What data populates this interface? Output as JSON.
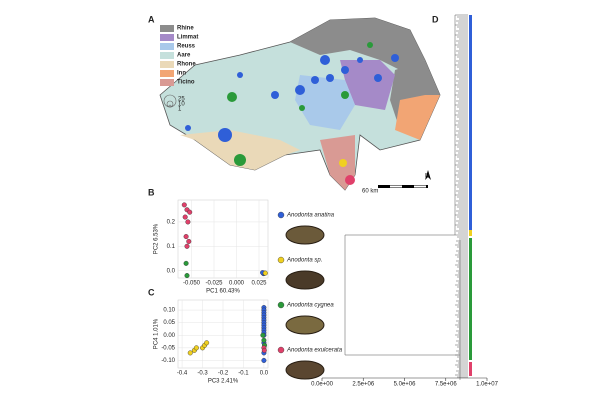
{
  "panels": {
    "a": "A",
    "b": "B",
    "c": "C",
    "d": "D"
  },
  "map": {
    "legend": [
      {
        "name": "Rhine",
        "color": "#8c8c8c"
      },
      {
        "name": "Limmat",
        "color": "#a58ac8"
      },
      {
        "name": "Reuss",
        "color": "#a9c9ea"
      },
      {
        "name": "Aare",
        "color": "#c5e0dc"
      },
      {
        "name": "Rhone",
        "color": "#ead9b8"
      },
      {
        "name": "Inn",
        "color": "#f2a574"
      },
      {
        "name": "Ticino",
        "color": "#d99a94"
      }
    ],
    "size_legend": [
      "25",
      "10",
      "1"
    ],
    "scale": "60 km",
    "north": "N"
  },
  "chart_data": [
    {
      "type": "scatter",
      "xlabel": "PC1 60.43%",
      "ylabel": "PC2 6.53%",
      "xlim": [
        -0.065,
        0.035
      ],
      "ylim": [
        -0.03,
        0.29
      ],
      "xticks": [
        {
          "value": -0.05,
          "label": "-0.050"
        },
        -0.025,
        {
          "value": 0,
          "label": "0.000"
        },
        0.025
      ],
      "yticks": [
        {
          "value": 0,
          "label": "0.0"
        },
        0.1,
        0.2
      ],
      "grid": true,
      "series": [
        {
          "name": "Anodonta anatina",
          "color": "#2f5fd8",
          "x": [
            0.03,
            0.031,
            0.029
          ],
          "y": [
            -0.012,
            -0.01,
            -0.008
          ]
        },
        {
          "name": "Anodonta sp.",
          "color": "#f0d020",
          "x": [
            0.032
          ],
          "y": [
            -0.01
          ]
        },
        {
          "name": "Anodonta cygnea",
          "color": "#2a9a3a",
          "x": [
            -0.056,
            -0.055
          ],
          "y": [
            0.03,
            -0.02
          ]
        },
        {
          "name": "Anodonta exulcerata",
          "color": "#e0406a",
          "x": [
            -0.058,
            -0.055,
            -0.052,
            -0.057,
            -0.054,
            -0.056,
            -0.053,
            -0.055
          ],
          "y": [
            0.27,
            0.25,
            0.24,
            0.22,
            0.2,
            0.14,
            0.12,
            0.1
          ]
        }
      ]
    },
    {
      "type": "scatter",
      "xlabel": "PC3 2.41%",
      "ylabel": "PC4 1.01%",
      "xlim": [
        -0.42,
        0.02
      ],
      "ylim": [
        -0.13,
        0.14
      ],
      "xticks": [
        -0.4,
        -0.3,
        -0.2,
        -0.1,
        {
          "value": 0,
          "label": "0.0"
        }
      ],
      "yticks": [
        {
          "value": 0.1,
          "label": "0.10"
        },
        {
          "value": 0.05,
          "label": "0.05"
        },
        {
          "value": 0,
          "label": "0.00"
        },
        {
          "value": -0.05,
          "label": "-0.05"
        },
        {
          "value": -0.1,
          "label": "-0.10"
        }
      ],
      "grid": true,
      "series": [
        {
          "color": "#2f5fd8",
          "x": [
            0,
            0,
            0,
            0,
            0,
            0,
            0,
            0,
            0,
            0,
            0,
            0,
            0,
            0,
            0
          ],
          "y": [
            0.11,
            0.1,
            0.09,
            0.08,
            0.07,
            0.06,
            0.05,
            0.04,
            0.03,
            0.02,
            0.01,
            0,
            -0.03,
            -0.07,
            -0.1
          ]
        },
        {
          "color": "#f0d020",
          "x": [
            -0.36,
            -0.34,
            -0.33,
            -0.3,
            -0.29,
            -0.28
          ],
          "y": [
            -0.07,
            -0.06,
            -0.05,
            -0.05,
            -0.04,
            -0.03
          ]
        },
        {
          "color": "#2a9a3a",
          "x": [
            -0.005,
            0,
            0.003
          ],
          "y": [
            0,
            -0.02,
            -0.04
          ]
        },
        {
          "color": "#e0406a",
          "x": [
            0,
            0.002
          ],
          "y": [
            -0.05,
            -0.06
          ]
        }
      ]
    },
    {
      "type": "dendrogram",
      "xlim": [
        0,
        10000000
      ],
      "xticks": [
        {
          "value": 0,
          "label": "0.0e+00"
        },
        {
          "value": 2500000,
          "label": "2.5e+06"
        },
        {
          "value": 5000000,
          "label": "5.0e+06"
        },
        {
          "value": 7500000,
          "label": "7.5e+06"
        },
        {
          "value": 10000000,
          "label": "1.0e+07"
        }
      ]
    }
  ]
}
